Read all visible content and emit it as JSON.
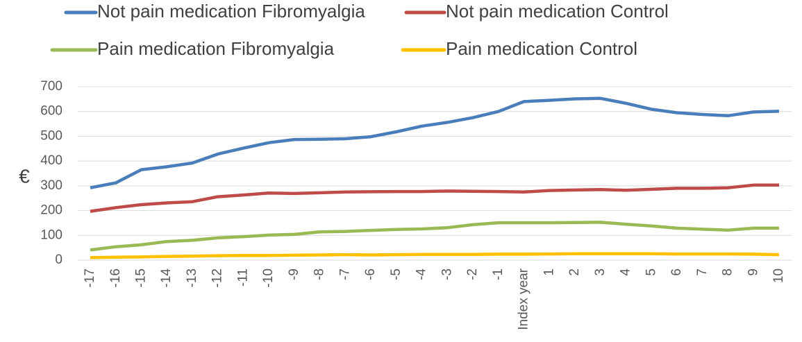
{
  "chart_data": {
    "type": "line",
    "ylabel": "€",
    "categories": [
      "-17",
      "-16",
      "-15",
      "-14",
      "-13",
      "-12",
      "-11",
      "-10",
      "-9",
      "-8",
      "-7",
      "-6",
      "-5",
      "-4",
      "-3",
      "-2",
      "-1",
      "Index year",
      "1",
      "2",
      "3",
      "4",
      "5",
      "6",
      "7",
      "8",
      "9",
      "10"
    ],
    "ylim": [
      0,
      700
    ],
    "yticks": [
      0,
      100,
      200,
      300,
      400,
      500,
      600,
      700
    ],
    "grid": true,
    "series": [
      {
        "name": "Not pain medication Fibromyalgia",
        "color": "#4a7ebb",
        "values": [
          292,
          312,
          365,
          377,
          392,
          428,
          452,
          474,
          487,
          488,
          490,
          498,
          518,
          541,
          556,
          575,
          600,
          640,
          645,
          651,
          653,
          633,
          609,
          595,
          588,
          583,
          598,
          601
        ]
      },
      {
        "name": "Not pain medication Control",
        "color": "#be4b48",
        "values": [
          197,
          212,
          224,
          231,
          236,
          256,
          263,
          271,
          269,
          272,
          275,
          276,
          277,
          277,
          279,
          278,
          277,
          275,
          281,
          283,
          285,
          282,
          286,
          290,
          290,
          292,
          303,
          303
        ]
      },
      {
        "name": "Pain medication Fibromyalgia",
        "color": "#98b954",
        "values": [
          41,
          54,
          62,
          75,
          80,
          90,
          95,
          101,
          104,
          114,
          116,
          120,
          124,
          126,
          131,
          143,
          151,
          151,
          151,
          152,
          153,
          145,
          138,
          129,
          125,
          121,
          129,
          129
        ]
      },
      {
        "name": "Pain medication Control",
        "color": "#ffc000",
        "values": [
          10,
          12,
          13,
          15,
          16,
          18,
          19,
          19,
          20,
          21,
          22,
          21,
          22,
          23,
          23,
          23,
          24,
          24,
          25,
          26,
          26,
          26,
          26,
          25,
          25,
          25,
          24,
          22
        ]
      }
    ]
  }
}
